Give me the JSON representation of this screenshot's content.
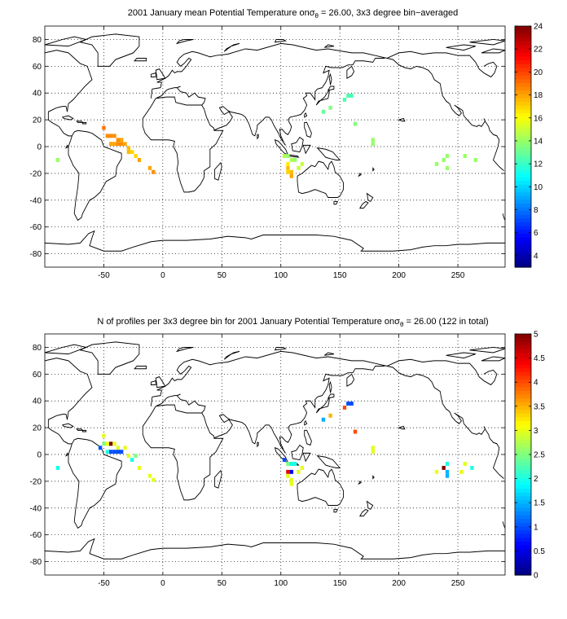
{
  "chart_data": [
    {
      "type": "heatmap",
      "title": "2001 January mean Potential Temperature onσθ = 26.00, 3x3 degree bin−averaged",
      "title_parts": {
        "pre": "2001 January mean Potential Temperature on",
        "sigma": "σ",
        "theta": "θ",
        "post": " = 26.00, 3x3 degree bin−averaged"
      },
      "xlim": [
        -100,
        290
      ],
      "ylim": [
        -90,
        90
      ],
      "xticks": [
        -50,
        0,
        50,
        100,
        150,
        200,
        250
      ],
      "yticks": [
        -80,
        -60,
        -40,
        -20,
        0,
        20,
        40,
        60,
        80
      ],
      "grid": true,
      "bin_size_deg": 3,
      "colorbar": {
        "min": 3,
        "max": 24,
        "colormap": "jet",
        "ticks": [
          4,
          6,
          8,
          10,
          12,
          14,
          16,
          18,
          20,
          22,
          24
        ]
      },
      "cells": [
        {
          "lon": -50,
          "lat": 14,
          "v": 19
        },
        {
          "lon": -47,
          "lat": 8,
          "v": 18.5
        },
        {
          "lon": -44,
          "lat": 8,
          "v": 18.5
        },
        {
          "lon": -41,
          "lat": 8,
          "v": 18.5
        },
        {
          "lon": -38,
          "lat": 5,
          "v": 18.5
        },
        {
          "lon": -35,
          "lat": 5,
          "v": 18
        },
        {
          "lon": -44,
          "lat": 2,
          "v": 18
        },
        {
          "lon": -41,
          "lat": 2,
          "v": 18
        },
        {
          "lon": -38,
          "lat": 2,
          "v": 18.5
        },
        {
          "lon": -35,
          "lat": 2,
          "v": 18.5
        },
        {
          "lon": -32,
          "lat": 2,
          "v": 18
        },
        {
          "lon": -29,
          "lat": -1,
          "v": 17.5
        },
        {
          "lon": -29,
          "lat": -4,
          "v": 17.5
        },
        {
          "lon": -26,
          "lat": -4,
          "v": 17
        },
        {
          "lon": -23,
          "lat": -7,
          "v": 17
        },
        {
          "lon": -20,
          "lat": -10,
          "v": 18
        },
        {
          "lon": -11,
          "lat": -16,
          "v": 18
        },
        {
          "lon": -8,
          "lat": -19,
          "v": 18.5
        },
        {
          "lon": -89,
          "lat": -10,
          "v": 14
        },
        {
          "lon": 103,
          "lat": -7,
          "v": 14.5
        },
        {
          "lon": 106,
          "lat": -7,
          "v": 14
        },
        {
          "lon": 109,
          "lat": -10,
          "v": 14.5
        },
        {
          "lon": 112,
          "lat": -10,
          "v": 14
        },
        {
          "lon": 106,
          "lat": -13,
          "v": 16.5
        },
        {
          "lon": 106,
          "lat": -16,
          "v": 17.5
        },
        {
          "lon": 109,
          "lat": -19,
          "v": 17.5
        },
        {
          "lon": 106,
          "lat": -19,
          "v": 17
        },
        {
          "lon": 109,
          "lat": -22,
          "v": 18
        },
        {
          "lon": 115,
          "lat": -16,
          "v": 15
        },
        {
          "lon": 118,
          "lat": -13,
          "v": 15
        },
        {
          "lon": 136,
          "lat": 26,
          "v": 13
        },
        {
          "lon": 142,
          "lat": 29,
          "v": 13.5
        },
        {
          "lon": 154,
          "lat": 35,
          "v": 12.5
        },
        {
          "lon": 157,
          "lat": 38,
          "v": 12.5
        },
        {
          "lon": 160,
          "lat": 38,
          "v": 12.5
        },
        {
          "lon": 163,
          "lat": 17,
          "v": 13.5
        },
        {
          "lon": 178,
          "lat": 5,
          "v": 14
        },
        {
          "lon": 178,
          "lat": 2,
          "v": 14
        },
        {
          "lon": 232,
          "lat": -13,
          "v": 14
        },
        {
          "lon": 238,
          "lat": -10,
          "v": 14
        },
        {
          "lon": 241,
          "lat": -7,
          "v": 14
        },
        {
          "lon": 241,
          "lat": -16,
          "v": 14
        },
        {
          "lon": 256,
          "lat": -7,
          "v": 14
        },
        {
          "lon": 265,
          "lat": -10,
          "v": 14
        }
      ]
    },
    {
      "type": "heatmap",
      "title": "N of profiles per 3x3 degree bin for 2001 January Potential Temperature onσθ = 26.00 (122 in total)",
      "title_parts": {
        "pre": "N of profiles per 3x3 degree bin for 2001 January Potential Temperature on",
        "sigma": "σ",
        "theta": "θ",
        "post": " = 26.00 (122 in total)"
      },
      "xlim": [
        -100,
        290
      ],
      "ylim": [
        -90,
        90
      ],
      "xticks": [
        -50,
        0,
        50,
        100,
        150,
        200,
        250
      ],
      "yticks": [
        -80,
        -60,
        -40,
        -20,
        0,
        20,
        40,
        60,
        80
      ],
      "grid": true,
      "bin_size_deg": 3,
      "colorbar": {
        "min": 0,
        "max": 5,
        "colormap": "jet",
        "ticks": [
          0,
          0.5,
          1,
          1.5,
          2,
          2.5,
          3,
          3.5,
          4,
          4.5,
          5
        ]
      },
      "cells": [
        {
          "lon": -53,
          "lat": 5,
          "v": 1
        },
        {
          "lon": -50,
          "lat": 14,
          "v": 3
        },
        {
          "lon": -50,
          "lat": 8,
          "v": 2.5
        },
        {
          "lon": -47,
          "lat": 8,
          "v": 3
        },
        {
          "lon": -44,
          "lat": 8,
          "v": 5
        },
        {
          "lon": -41,
          "lat": 8,
          "v": 3
        },
        {
          "lon": -38,
          "lat": 5,
          "v": 3
        },
        {
          "lon": -32,
          "lat": 5,
          "v": 3
        },
        {
          "lon": -47,
          "lat": 2,
          "v": 2
        },
        {
          "lon": -44,
          "lat": 2,
          "v": 1
        },
        {
          "lon": -41,
          "lat": 2,
          "v": 1
        },
        {
          "lon": -38,
          "lat": 2,
          "v": 1
        },
        {
          "lon": -35,
          "lat": 2,
          "v": 1
        },
        {
          "lon": -29,
          "lat": -1,
          "v": 3
        },
        {
          "lon": -23,
          "lat": -1,
          "v": 2.5
        },
        {
          "lon": -26,
          "lat": -4,
          "v": 2
        },
        {
          "lon": -20,
          "lat": -10,
          "v": 3
        },
        {
          "lon": -11,
          "lat": -16,
          "v": 3
        },
        {
          "lon": -8,
          "lat": -19,
          "v": 3
        },
        {
          "lon": -89,
          "lat": -10,
          "v": 2
        },
        {
          "lon": 103,
          "lat": -4,
          "v": 1
        },
        {
          "lon": 106,
          "lat": -7,
          "v": 2.5
        },
        {
          "lon": 109,
          "lat": -7,
          "v": 2
        },
        {
          "lon": 112,
          "lat": -7,
          "v": 2
        },
        {
          "lon": 106,
          "lat": -13,
          "v": 4.5
        },
        {
          "lon": 109,
          "lat": -13,
          "v": 0.5
        },
        {
          "lon": 106,
          "lat": -16,
          "v": 3
        },
        {
          "lon": 109,
          "lat": -19,
          "v": 3
        },
        {
          "lon": 109,
          "lat": -22,
          "v": 3
        },
        {
          "lon": 115,
          "lat": -13,
          "v": 3
        },
        {
          "lon": 118,
          "lat": -10,
          "v": 3
        },
        {
          "lon": 136,
          "lat": 26,
          "v": 1.5
        },
        {
          "lon": 142,
          "lat": 29,
          "v": 3.5
        },
        {
          "lon": 154,
          "lat": 35,
          "v": 4
        },
        {
          "lon": 157,
          "lat": 38,
          "v": 1
        },
        {
          "lon": 160,
          "lat": 38,
          "v": 1
        },
        {
          "lon": 163,
          "lat": 17,
          "v": 4
        },
        {
          "lon": 178,
          "lat": 5,
          "v": 3
        },
        {
          "lon": 178,
          "lat": 2,
          "v": 3
        },
        {
          "lon": 232,
          "lat": -13,
          "v": 3
        },
        {
          "lon": 238,
          "lat": -10,
          "v": 5
        },
        {
          "lon": 241,
          "lat": -7,
          "v": 2
        },
        {
          "lon": 241,
          "lat": -13,
          "v": 1.5
        },
        {
          "lon": 241,
          "lat": -16,
          "v": 1.5
        },
        {
          "lon": 253,
          "lat": -13,
          "v": 3
        },
        {
          "lon": 256,
          "lat": -7,
          "v": 3
        },
        {
          "lon": 262,
          "lat": -10,
          "v": 2
        }
      ]
    }
  ]
}
